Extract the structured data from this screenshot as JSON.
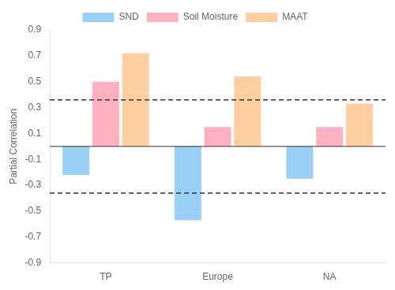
{
  "chart_data": {
    "type": "bar",
    "categories": [
      "TP",
      "Europe",
      "NA"
    ],
    "series": [
      {
        "name": "SND",
        "values": [
          -0.22,
          -0.57,
          -0.25
        ]
      },
      {
        "name": "Soil Moisture",
        "values": [
          0.5,
          0.15,
          0.15
        ]
      },
      {
        "name": "MAAT",
        "values": [
          0.72,
          0.54,
          0.33
        ]
      }
    ],
    "ylabel": "Partial Correlation",
    "ylim": [
      -0.9,
      0.9
    ],
    "yticks": [
      -0.9,
      -0.7,
      -0.5,
      -0.3,
      -0.1,
      0.1,
      0.3,
      0.5,
      0.7,
      0.9
    ],
    "reference_lines": [
      {
        "value": 0.36,
        "line_style": "dashed"
      },
      {
        "value": -0.36,
        "line_style": "dashed"
      },
      {
        "value": 0,
        "line_style": "solid"
      }
    ],
    "grid": false,
    "legend": "top"
  }
}
